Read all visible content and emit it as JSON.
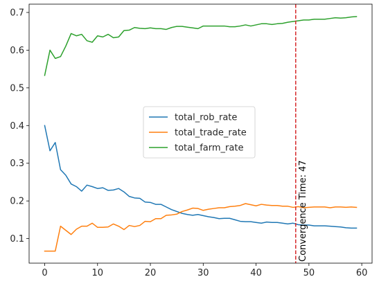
{
  "chart_data": {
    "type": "line",
    "title": "",
    "xlabel": "",
    "ylabel": "",
    "xlim": [
      -2.95,
      61.95
    ],
    "ylim": [
      0.035,
      0.722
    ],
    "xticks": [
      0,
      10,
      20,
      30,
      40,
      50,
      60
    ],
    "yticks": [
      0.1,
      0.2,
      0.3,
      0.4,
      0.5,
      0.6,
      0.7
    ],
    "grid": false,
    "legend_position": "center",
    "x": [
      0,
      1,
      2,
      3,
      4,
      5,
      6,
      7,
      8,
      9,
      10,
      11,
      12,
      13,
      14,
      15,
      16,
      17,
      18,
      19,
      20,
      21,
      22,
      23,
      24,
      25,
      26,
      27,
      28,
      29,
      30,
      31,
      32,
      33,
      34,
      35,
      36,
      37,
      38,
      39,
      40,
      41,
      42,
      43,
      44,
      45,
      46,
      47,
      48,
      49,
      50,
      51,
      52,
      53,
      54,
      55,
      56,
      57,
      58,
      59
    ],
    "series": [
      {
        "name": "total_rob_rate",
        "color": "#1f77b4",
        "values": [
          0.4,
          0.333,
          0.355,
          0.283,
          0.268,
          0.245,
          0.238,
          0.226,
          0.242,
          0.238,
          0.233,
          0.235,
          0.228,
          0.229,
          0.233,
          0.224,
          0.212,
          0.208,
          0.207,
          0.197,
          0.196,
          0.191,
          0.191,
          0.184,
          0.177,
          0.172,
          0.167,
          0.164,
          0.162,
          0.164,
          0.161,
          0.158,
          0.156,
          0.153,
          0.154,
          0.154,
          0.15,
          0.146,
          0.145,
          0.145,
          0.143,
          0.141,
          0.144,
          0.143,
          0.143,
          0.141,
          0.139,
          0.141,
          0.137,
          0.136,
          0.136,
          0.134,
          0.134,
          0.134,
          0.133,
          0.132,
          0.131,
          0.129,
          0.128,
          0.128
        ]
      },
      {
        "name": "total_trade_rate",
        "color": "#ff7f0e",
        "values": [
          0.067,
          0.067,
          0.067,
          0.133,
          0.122,
          0.111,
          0.125,
          0.133,
          0.133,
          0.141,
          0.13,
          0.13,
          0.131,
          0.139,
          0.133,
          0.124,
          0.135,
          0.132,
          0.135,
          0.146,
          0.145,
          0.153,
          0.153,
          0.162,
          0.163,
          0.165,
          0.172,
          0.176,
          0.181,
          0.18,
          0.175,
          0.178,
          0.18,
          0.182,
          0.182,
          0.185,
          0.186,
          0.188,
          0.193,
          0.19,
          0.187,
          0.191,
          0.189,
          0.188,
          0.188,
          0.186,
          0.186,
          0.183,
          0.185,
          0.182,
          0.183,
          0.184,
          0.184,
          0.184,
          0.182,
          0.184,
          0.184,
          0.183,
          0.184,
          0.183
        ]
      },
      {
        "name": "total_farm_rate",
        "color": "#2ca02c",
        "values": [
          0.533,
          0.6,
          0.578,
          0.583,
          0.611,
          0.644,
          0.638,
          0.642,
          0.625,
          0.621,
          0.638,
          0.635,
          0.642,
          0.633,
          0.635,
          0.652,
          0.653,
          0.66,
          0.658,
          0.657,
          0.659,
          0.657,
          0.657,
          0.655,
          0.66,
          0.663,
          0.663,
          0.661,
          0.659,
          0.657,
          0.664,
          0.664,
          0.664,
          0.664,
          0.664,
          0.662,
          0.662,
          0.664,
          0.667,
          0.664,
          0.667,
          0.67,
          0.67,
          0.668,
          0.67,
          0.671,
          0.674,
          0.676,
          0.678,
          0.68,
          0.68,
          0.682,
          0.682,
          0.682,
          0.684,
          0.686,
          0.685,
          0.686,
          0.688,
          0.689
        ]
      }
    ],
    "annotations": [
      {
        "type": "vline",
        "x": 47.5,
        "color": "#d62728",
        "style": "dashed",
        "text": "Convergence Time: 47"
      }
    ]
  }
}
